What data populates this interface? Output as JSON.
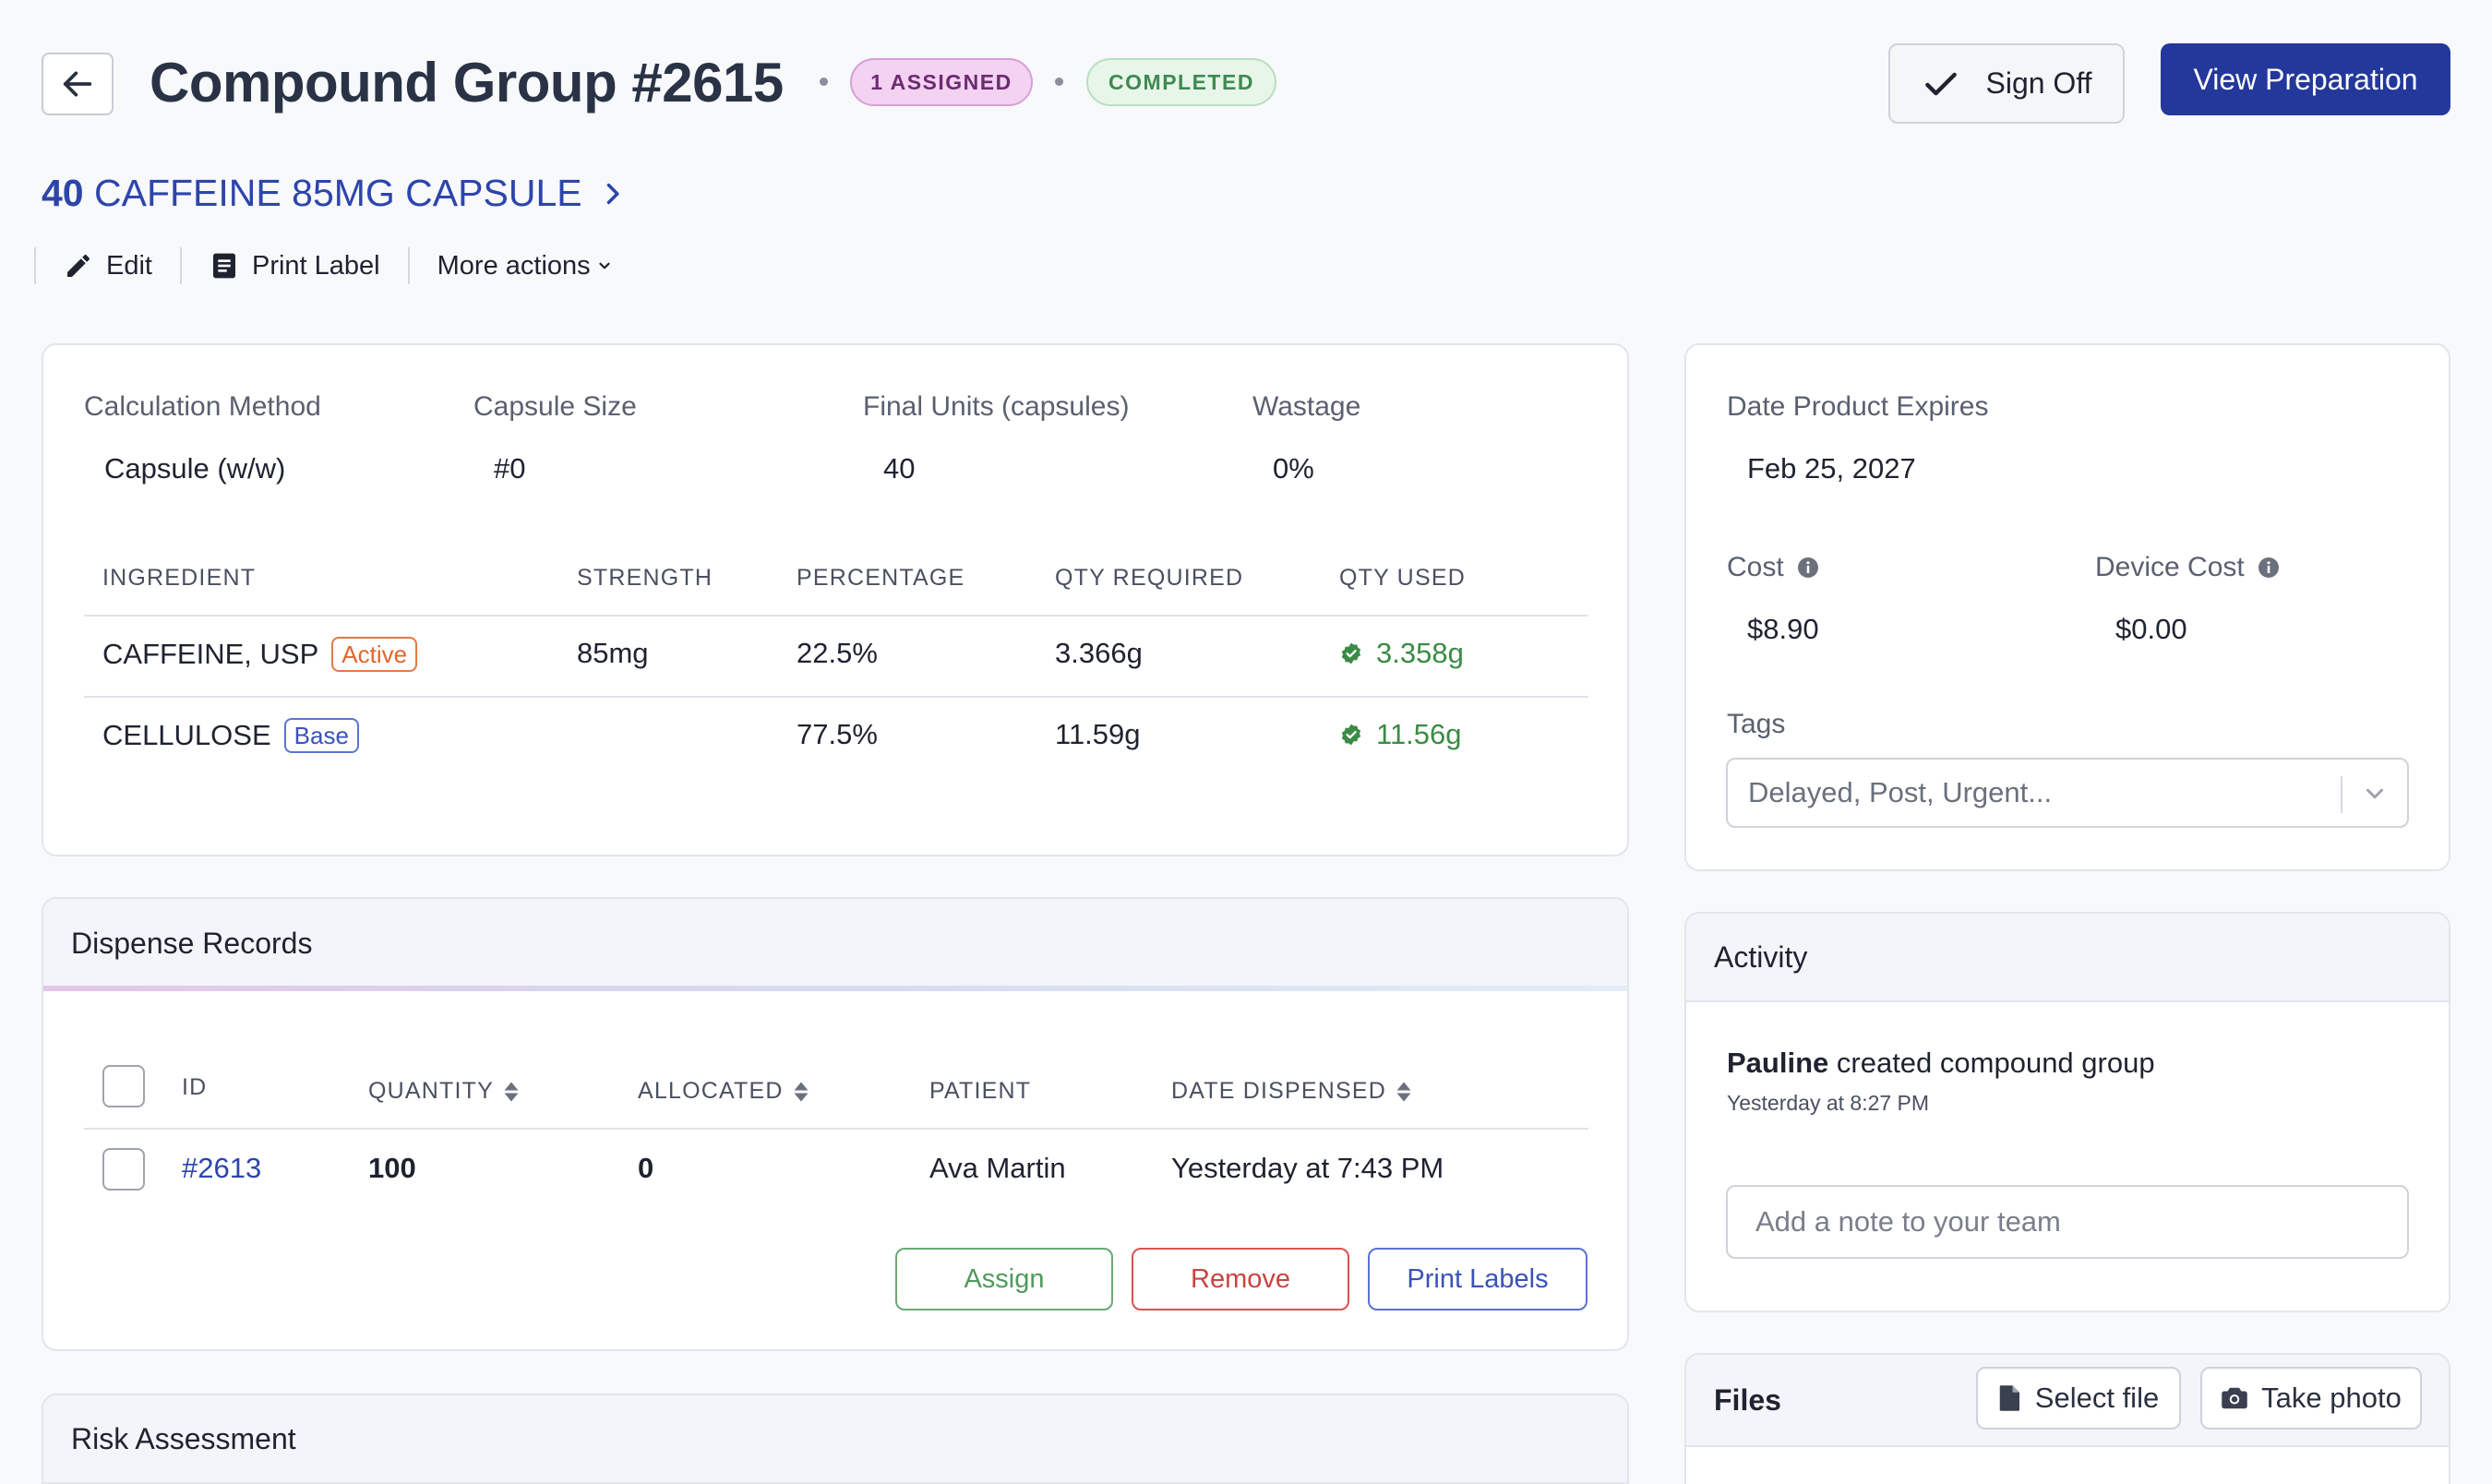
{
  "header": {
    "title": "Compound Group #2615",
    "assigned_badge": "1 ASSIGNED",
    "status_badge": "COMPLETED",
    "sign_off_label": "Sign Off",
    "view_preparation_label": "View Preparation"
  },
  "product": {
    "quantity": "40",
    "name": "CAFFEINE 85MG CAPSULE"
  },
  "toolbar": {
    "edit_label": "Edit",
    "print_label": "Print Label",
    "more_actions_label": "More actions"
  },
  "formula": {
    "fields": [
      {
        "label": "Calculation Method",
        "value": "Capsule (w/w)"
      },
      {
        "label": "Capsule Size",
        "value": "#0"
      },
      {
        "label": "Final Units (capsules)",
        "value": "40"
      },
      {
        "label": "Wastage",
        "value": "0%"
      }
    ],
    "columns": [
      "INGREDIENT",
      "STRENGTH",
      "PERCENTAGE",
      "QTY REQUIRED",
      "QTY USED"
    ],
    "rows": [
      {
        "ingredient": "CAFFEINE, USP",
        "tag": "Active",
        "strength": "85mg",
        "percentage": "22.5%",
        "qty_required": "3.366g",
        "qty_used": "3.358g"
      },
      {
        "ingredient": "CELLULOSE",
        "tag": "Base",
        "strength": "",
        "percentage": "77.5%",
        "qty_required": "11.59g",
        "qty_used": "11.56g"
      }
    ]
  },
  "dispense": {
    "title": "Dispense Records",
    "columns": [
      "ID",
      "QUANTITY",
      "ALLOCATED",
      "PATIENT",
      "DATE DISPENSED"
    ],
    "rows": [
      {
        "id": "#2613",
        "quantity": "100",
        "allocated": "0",
        "patient": "Ava Martin",
        "date": "Yesterday at 7:43 PM"
      }
    ],
    "assign_label": "Assign",
    "remove_label": "Remove",
    "print_labels_label": "Print Labels"
  },
  "risk": {
    "title": "Risk Assessment"
  },
  "details": {
    "expires_label": "Date Product Expires",
    "expires_value": "Feb 25, 2027",
    "cost_label": "Cost",
    "cost_value": "$8.90",
    "device_cost_label": "Device Cost",
    "device_cost_value": "$0.00",
    "tags_label": "Tags",
    "tags_placeholder": "Delayed, Post, Urgent..."
  },
  "activity": {
    "title": "Activity",
    "entries": [
      {
        "user": "Pauline",
        "action": "created compound group",
        "time": "Yesterday at 8:27 PM"
      }
    ],
    "note_placeholder": "Add a note to your team"
  },
  "files": {
    "title": "Files",
    "select_file_label": "Select file",
    "take_photo_label": "Take photo"
  },
  "colors": {
    "primary": "#23389a",
    "link": "#2d45ab",
    "assigned_badge_bg": "#f3d2f2",
    "completed_badge_bg": "#e8f6ea",
    "active_tag": "#e0662b",
    "base_tag": "#3a52b8",
    "success": "#3b8b45",
    "remove": "#d9534f"
  }
}
